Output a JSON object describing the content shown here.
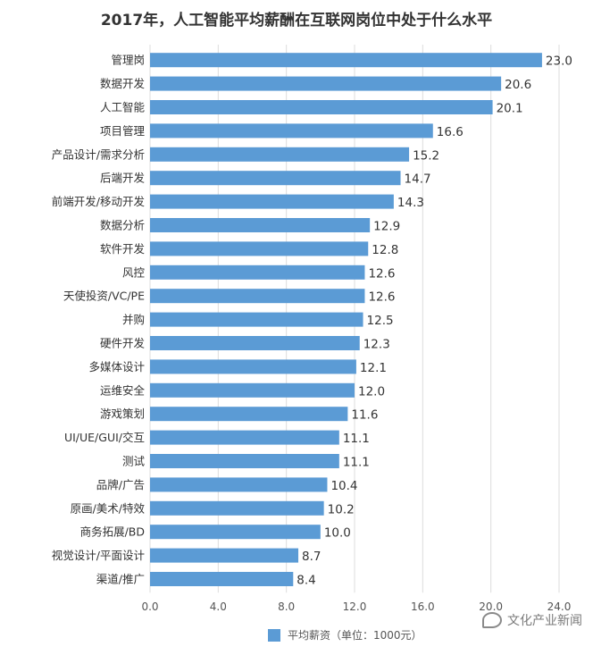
{
  "chart_data": {
    "type": "bar",
    "orientation": "horizontal",
    "title": "2017年，人工智能平均薪酬在互联网岗位中处于什么水平",
    "categories": [
      "管理岗",
      "数据开发",
      "人工智能",
      "项目管理",
      "产品设计/需求分析",
      "后端开发",
      "前端开发/移动开发",
      "数据分析",
      "软件开发",
      "风控",
      "天使投资/VC/PE",
      "并购",
      "硬件开发",
      "多媒体设计",
      "运维安全",
      "游戏策划",
      "UI/UE/GUI/交互",
      "测试",
      "品牌/广告",
      "原画/美术/特效",
      "商务拓展/BD",
      "视觉设计/平面设计",
      "渠道/推广"
    ],
    "series": [
      {
        "name": "平均薪资（单位：1000元）",
        "values": [
          23.0,
          20.6,
          20.1,
          16.6,
          15.2,
          14.7,
          14.3,
          12.9,
          12.8,
          12.6,
          12.6,
          12.5,
          12.3,
          12.1,
          12.0,
          11.6,
          11.1,
          11.1,
          10.4,
          10.2,
          10.0,
          8.7,
          8.4
        ],
        "labels": [
          "23.0",
          "20.6",
          "20.1",
          "16.6",
          "15.2",
          "14.7",
          "14.3",
          "12.9",
          "12.8",
          "12.6",
          "12.6",
          "12.5",
          "12.3",
          "12.1",
          "12.0",
          "11.6",
          "11.1",
          "11.1",
          "10.4",
          "10.2",
          "10.0",
          "8.7",
          "8.4"
        ]
      }
    ],
    "xlim": [
      0,
      24
    ],
    "xticks": [
      "0.0",
      "4.0",
      "8.0",
      "12.0",
      "16.0",
      "20.0",
      "24.0"
    ],
    "grid": true,
    "legend_position": "bottom",
    "bar_color": "#5b9bd5"
  },
  "watermark": {
    "text": "文化产业新闻"
  }
}
